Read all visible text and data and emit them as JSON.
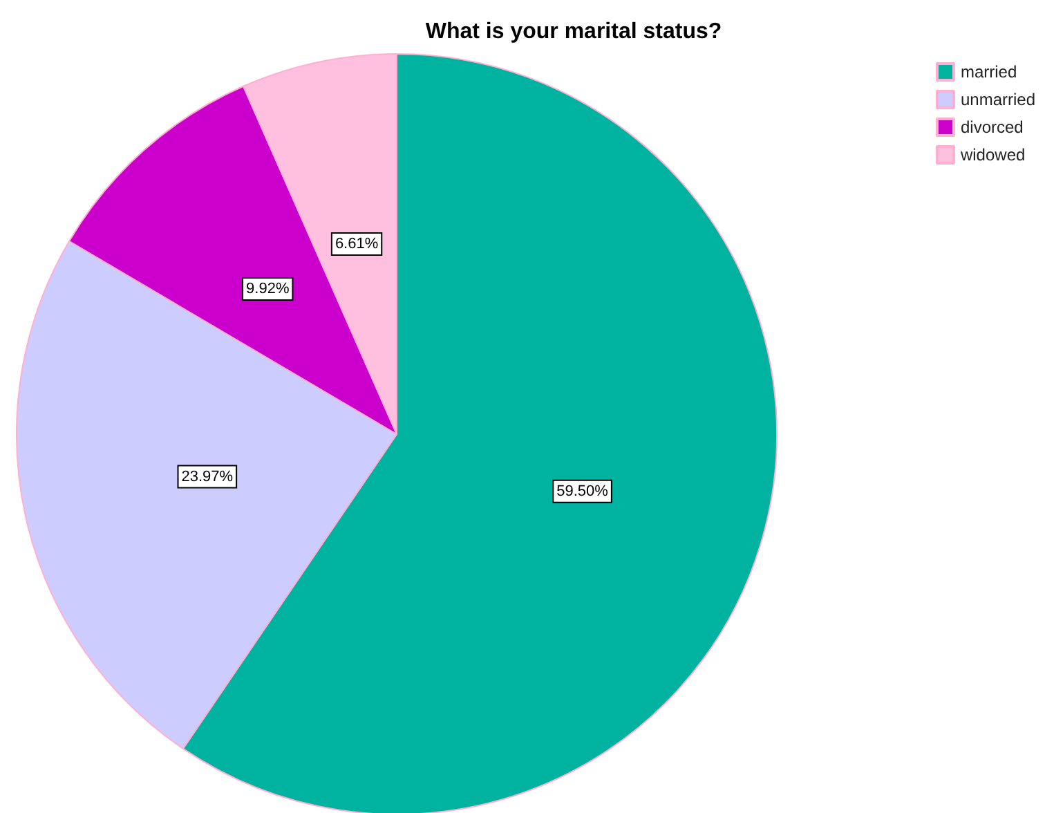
{
  "chart_data": {
    "type": "pie",
    "title": "What is your marital status?",
    "categories": [
      "married",
      "unmarried",
      "divorced",
      "widowed"
    ],
    "values": [
      59.5,
      23.97,
      9.92,
      6.61
    ],
    "colors": [
      "#00b2a0",
      "#ccccff",
      "#cc00cc",
      "#ffc0e0"
    ],
    "value_labels": [
      "59.50%",
      "23.97%",
      "9.92%",
      "6.61%"
    ],
    "legend": "top right"
  }
}
